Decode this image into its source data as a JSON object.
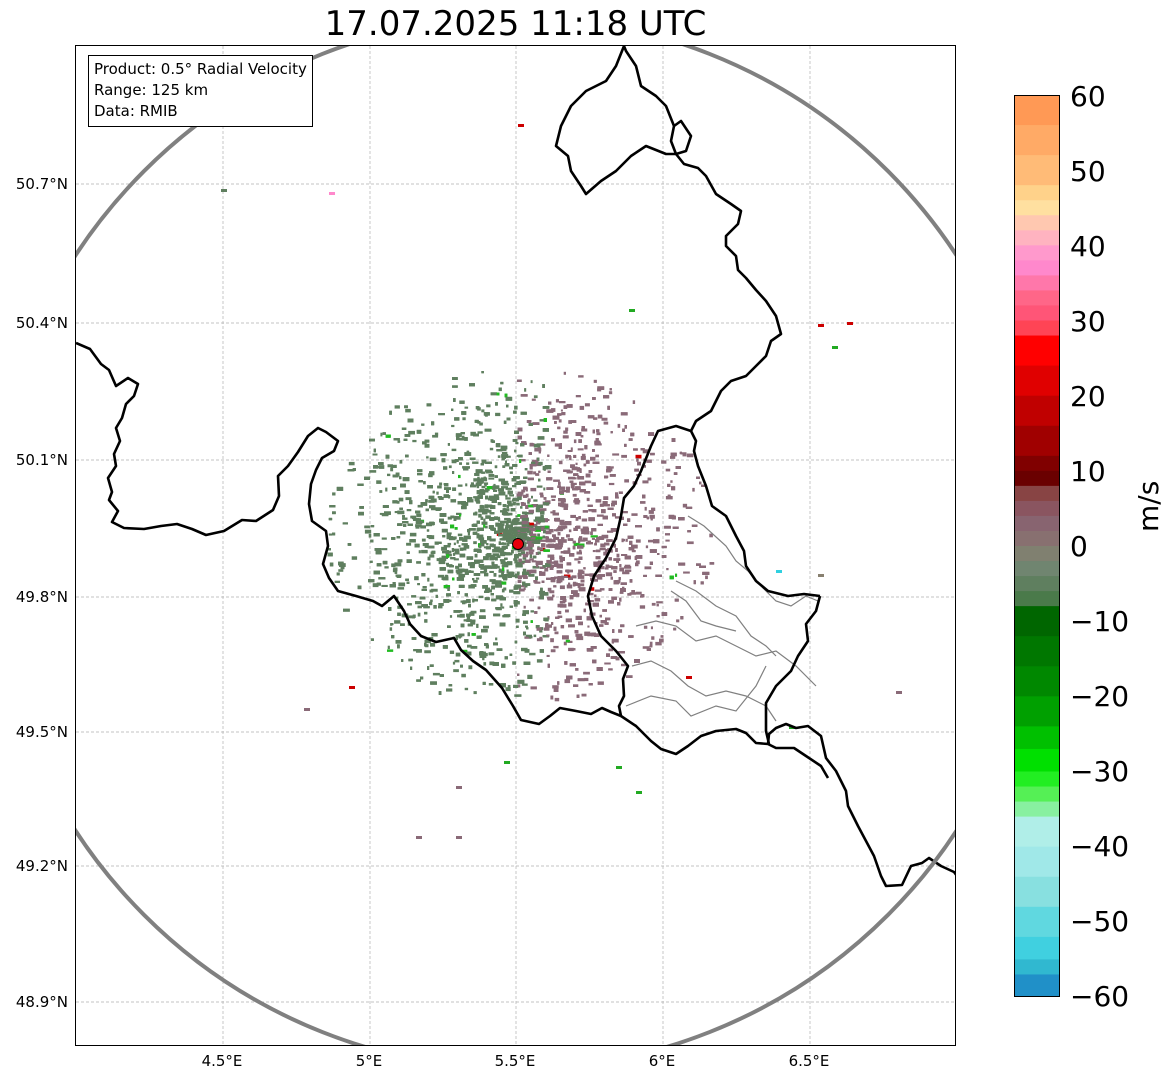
{
  "title": "17.07.2025 11:18 UTC",
  "info": {
    "product": "Product: 0.5° Radial Velocity",
    "range": "Range: 125 km",
    "source": "Data: RMIB"
  },
  "latitude_labels": [
    "50.7°N",
    "50.4°N",
    "50.1°N",
    "49.8°N",
    "49.5°N",
    "49.2°N",
    "48.9°N"
  ],
  "longitude_labels": [
    "4.5°E",
    "5°E",
    "5.5°E",
    "6°E",
    "6.5°E"
  ],
  "colorbar": {
    "unit": "m/s",
    "ticks": [
      "60",
      "50",
      "40",
      "30",
      "20",
      "10",
      "0",
      "−10",
      "−20",
      "−30",
      "−40",
      "−50",
      "−60"
    ],
    "range": [
      -60,
      60
    ]
  },
  "map": {
    "radar_site": {
      "lon": 5.5,
      "lat": 49.91
    },
    "radar_range_km": 125,
    "extent": {
      "lon": [
        4.0,
        7.0
      ],
      "lat": [
        48.8,
        51.0
      ]
    },
    "colors": {
      "range_ring": "#808080",
      "border": "#000000",
      "admin_border": "#808080",
      "grid": "#b0b0b0",
      "site_marker": "#e8000b",
      "echo_approaching": "#5f7f5f",
      "echo_receding": "#8a6a78"
    }
  }
}
